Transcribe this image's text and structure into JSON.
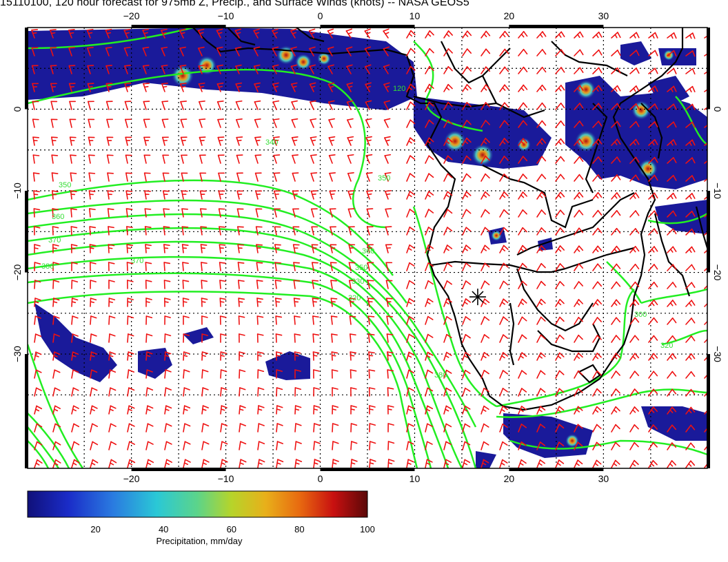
{
  "title": "15110100, 120 hour forecast for 975mb Z, Precip., and Surface Winds (knots) -- NASA GEOS5",
  "colors": {
    "background": "#ffffff",
    "contour": "#22ee22",
    "wind_barb": "#ee1111",
    "coastline": "#000000",
    "precip_base": "#1a1a9a"
  },
  "map": {
    "lon_range": [
      -31,
      41
    ],
    "lat_range": [
      -44,
      10
    ],
    "x_ticks": [
      {
        "value": -20,
        "label": "−20"
      },
      {
        "value": -10,
        "label": "−10"
      },
      {
        "value": 0,
        "label": "0"
      },
      {
        "value": 10,
        "label": "10"
      },
      {
        "value": 20,
        "label": "20"
      },
      {
        "value": 30,
        "label": "30"
      }
    ],
    "y_ticks": [
      {
        "value": 0,
        "label": "0"
      },
      {
        "value": -10,
        "label": "−10"
      },
      {
        "value": -20,
        "label": "−20"
      },
      {
        "value": -30,
        "label": "−30"
      }
    ],
    "gridlines": "dotted",
    "marker": {
      "name": "station-marker",
      "lon": 15,
      "lat": -23
    }
  },
  "contours": {
    "labels": [
      "340",
      "350",
      "360",
      "370",
      "380",
      "370",
      "360",
      "350",
      "330",
      "320",
      "300",
      "320",
      "380",
      "120",
      "350"
    ]
  },
  "colorbar": {
    "ticks": [
      "20",
      "40",
      "60",
      "80",
      "100"
    ],
    "min": 0,
    "max": 100,
    "label": "Precipitation, mm/day"
  }
}
